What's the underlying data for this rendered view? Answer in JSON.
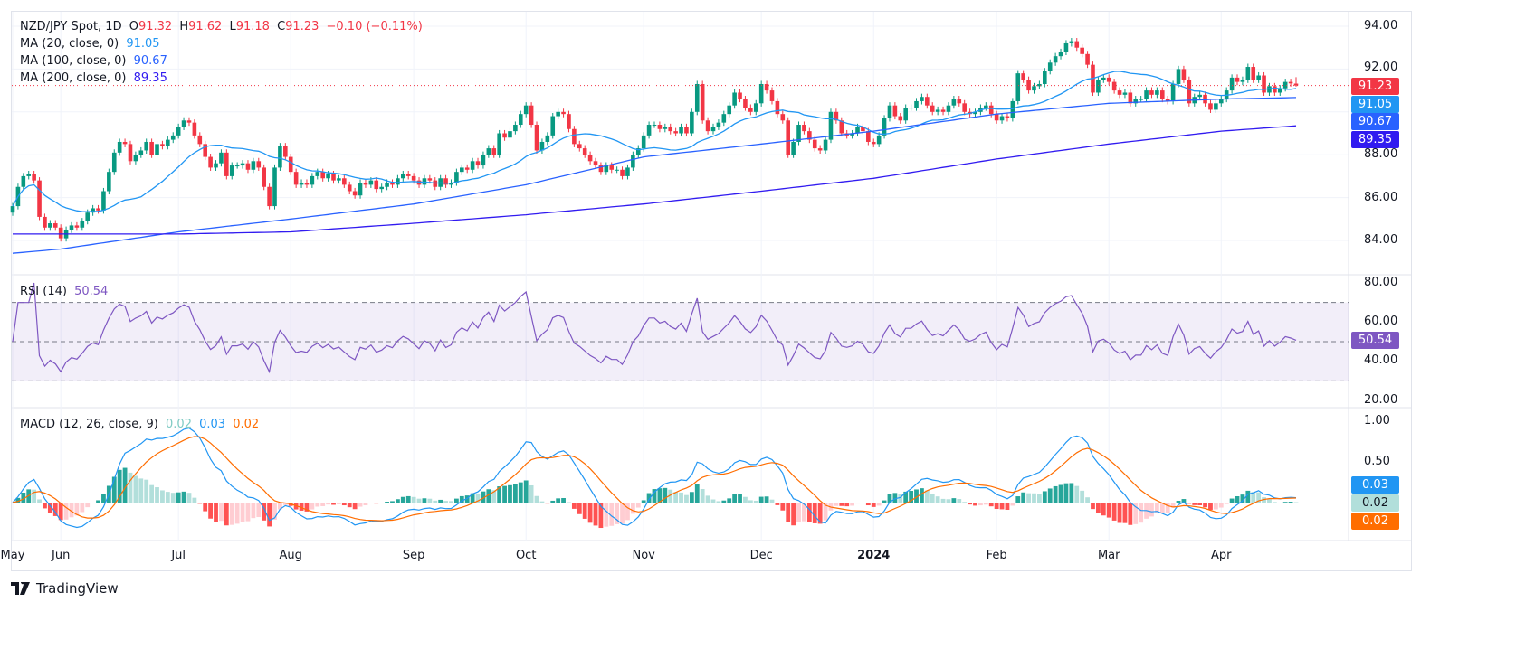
{
  "header": {
    "symbol": "NZD/JPY Spot, 1D",
    "o_label": "O",
    "o": "91.32",
    "h_label": "H",
    "h": "91.62",
    "l_label": "L",
    "l": "91.18",
    "c_label": "C",
    "c": "91.23",
    "change": "−0.10 (−0.11%)"
  },
  "indicators": {
    "ma20": {
      "label": "MA (20, close, 0)",
      "value": "91.05",
      "color": "#2196f3"
    },
    "ma100": {
      "label": "MA (100, close, 0)",
      "value": "90.67",
      "color": "#2962ff"
    },
    "ma200": {
      "label": "MA (200, close, 0)",
      "value": "89.35",
      "color": "#311bf0"
    },
    "rsi": {
      "label": "RSI (14)",
      "value": "50.54",
      "color": "#7e57c2"
    },
    "macd": {
      "label": "MACD (12, 26, close, 9)",
      "hist": "0.02",
      "macd": "0.03",
      "signal": "0.02",
      "hist_color": "#b2dfdb",
      "macd_color": "#2196f3",
      "signal_color": "#ff6d00"
    }
  },
  "price_tags": {
    "last": "91.23",
    "ma20": "91.05",
    "ma100": "90.67",
    "ma200": "89.35",
    "rsi": "50.54",
    "macd": "0.03",
    "hist": "0.02",
    "signal": "0.02"
  },
  "axes": {
    "price_ticks": [
      "94.00",
      "92.00",
      "88.00",
      "86.00",
      "84.00"
    ],
    "rsi_ticks": [
      "80.00",
      "60.00",
      "40.00",
      "20.00"
    ],
    "macd_ticks": [
      "1.00",
      "0.50"
    ],
    "months": [
      "Jun",
      "Jul",
      "Aug",
      "Sep",
      "Oct",
      "Nov",
      "Dec",
      "2024",
      "Feb",
      "Mar",
      "Apr",
      "May"
    ]
  },
  "footer": {
    "brand": "TradingView"
  },
  "colors": {
    "up": "#089981",
    "down": "#f23645",
    "last_price_line": "#f23645"
  },
  "chart_data": {
    "type": "candlestick",
    "title": "NZD/JPY Spot, 1D",
    "ylim": [
      83,
      94.5
    ],
    "rsi_ylim": [
      15,
      85
    ],
    "rsi_bands": [
      30,
      50,
      70
    ],
    "macd_ylim": [
      -0.45,
      1.1
    ],
    "last_candle": {
      "open": 91.32,
      "high": 91.62,
      "low": 91.18,
      "close": 91.23
    },
    "closes_by_month": [
      {
        "month": "May",
        "closes": [
          85.6,
          86.5,
          87.0,
          87.1,
          86.8,
          85.1,
          84.6,
          84.8,
          84.6
        ]
      },
      {
        "month": "Jun",
        "closes": [
          84.1,
          84.5,
          84.7,
          84.6,
          84.9,
          85.3,
          85.5,
          85.4,
          86.3,
          87.2,
          88.1,
          88.6,
          88.5,
          87.7,
          88.0,
          88.2,
          88.6,
          88.0,
          88.5,
          88.4,
          88.7,
          88.9
        ]
      },
      {
        "month": "Jul",
        "closes": [
          89.3,
          89.6,
          89.5,
          88.9,
          88.5,
          87.9,
          87.4,
          87.6,
          88.1,
          87.0,
          87.5,
          87.5,
          87.6,
          87.3,
          87.7,
          87.4,
          86.5,
          85.6,
          87.4,
          88.4,
          87.9
        ]
      },
      {
        "month": "Aug",
        "closes": [
          87.2,
          86.6,
          86.7,
          86.6,
          87.0,
          87.2,
          86.9,
          87.1,
          86.8,
          86.9,
          86.6,
          86.3,
          86.1,
          86.7,
          86.6,
          86.8,
          86.4,
          86.5,
          86.7,
          86.6,
          86.9,
          87.1,
          87.0
        ]
      },
      {
        "month": "Sep",
        "closes": [
          86.8,
          86.6,
          86.9,
          86.8,
          86.5,
          86.9,
          86.6,
          86.7,
          87.2,
          87.4,
          87.3,
          87.7,
          87.5,
          88.0,
          88.3,
          88.0,
          89.0,
          88.8,
          89.1,
          89.4,
          89.9
        ]
      },
      {
        "month": "Oct",
        "closes": [
          90.3,
          89.4,
          88.2,
          88.6,
          88.9,
          89.8,
          90.0,
          89.9,
          89.2,
          88.5,
          88.3,
          88.0,
          87.7,
          87.5,
          87.2,
          87.5,
          87.3,
          87.3,
          87.0,
          87.4,
          88.0,
          88.3
        ]
      },
      {
        "month": "Nov",
        "closes": [
          88.9,
          89.4,
          89.4,
          89.2,
          89.3,
          89.1,
          89.0,
          89.3,
          89.0,
          90.0,
          91.3,
          89.6,
          89.1,
          89.3,
          89.5,
          89.9,
          90.3,
          90.9,
          90.6,
          90.2,
          90.0,
          90.4
        ]
      },
      {
        "month": "Dec",
        "closes": [
          91.3,
          91.0,
          90.5,
          89.9,
          89.6,
          88.0,
          88.6,
          89.4,
          89.1,
          88.7,
          88.3,
          88.2,
          88.7,
          90.0,
          89.6,
          89.0,
          88.9,
          89.0,
          89.3,
          89.1,
          88.6
        ]
      },
      {
        "month": "2024",
        "closes": [
          88.5,
          88.9,
          89.7,
          90.3,
          89.8,
          89.6,
          90.2,
          90.2,
          90.5,
          90.7,
          90.3,
          90.0,
          90.1,
          90.0,
          90.3,
          90.6,
          90.4,
          90.0,
          89.9,
          90.0,
          90.2,
          90.3,
          89.9
        ]
      },
      {
        "month": "Feb",
        "closes": [
          89.6,
          89.8,
          89.7,
          90.5,
          91.8,
          91.5,
          91.0,
          91.2,
          91.3,
          91.9,
          92.3,
          92.6,
          92.8,
          93.2,
          93.3,
          93.0,
          92.7,
          92.2,
          90.9,
          91.5,
          91.6
        ]
      },
      {
        "month": "Mar",
        "closes": [
          91.4,
          91.0,
          90.8,
          90.9,
          90.4,
          90.6,
          90.6,
          91.0,
          90.8,
          91.0,
          90.6,
          90.5,
          91.3,
          92.0,
          91.5,
          90.4,
          90.7,
          90.8,
          90.4,
          90.1,
          90.4
        ]
      },
      {
        "month": "Apr",
        "closes": [
          90.6,
          91.0,
          91.6,
          91.4,
          91.5,
          92.1,
          91.5,
          91.7,
          90.9,
          91.2,
          90.9,
          91.1,
          91.4,
          91.33,
          91.23
        ]
      }
    ],
    "ma100_by_month": [
      [
        "May",
        83.4
      ],
      [
        "Jun",
        83.6
      ],
      [
        "Jul",
        84.4
      ],
      [
        "Aug",
        85.0
      ],
      [
        "Sep",
        85.7
      ],
      [
        "Oct",
        86.6
      ],
      [
        "Nov",
        87.9
      ],
      [
        "Dec",
        88.5
      ],
      [
        "2024",
        89.1
      ],
      [
        "Feb",
        89.9
      ],
      [
        "Mar",
        90.4
      ],
      [
        "Apr",
        90.6
      ],
      [
        "end",
        90.67
      ]
    ],
    "ma200_by_month": [
      [
        "May",
        84.3
      ],
      [
        "Jun",
        84.3
      ],
      [
        "Jul",
        84.3
      ],
      [
        "Aug",
        84.4
      ],
      [
        "Sep",
        84.8
      ],
      [
        "Oct",
        85.2
      ],
      [
        "Nov",
        85.7
      ],
      [
        "Dec",
        86.3
      ],
      [
        "2024",
        86.9
      ],
      [
        "Feb",
        87.8
      ],
      [
        "Mar",
        88.5
      ],
      [
        "Apr",
        89.1
      ],
      [
        "end",
        89.35
      ]
    ]
  }
}
